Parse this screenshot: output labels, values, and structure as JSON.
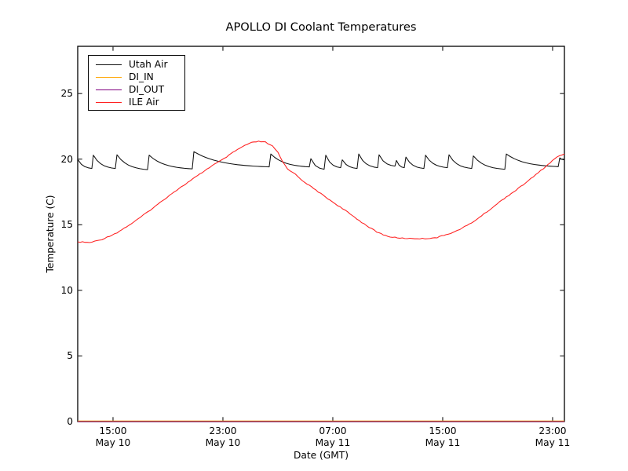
{
  "figure": {
    "background": "#ffffff"
  },
  "chart_data": {
    "type": "line",
    "title": "APOLLO DI Coolant Temperatures",
    "xlabel": "Date (GMT)",
    "ylabel": "Temperature (C)",
    "x_unit_note": "hours since May 10 00:00 GMT, ticks every 8 hours",
    "xlim": [
      12.43,
      47.86
    ],
    "ylim": [
      0,
      28.6
    ],
    "grid": false,
    "legend_position": "upper left",
    "x_ticks": [
      {
        "value": 15,
        "time": "15:00",
        "date": "May 10"
      },
      {
        "value": 23,
        "time": "23:00",
        "date": "May 10"
      },
      {
        "value": 31,
        "time": "07:00",
        "date": "May 11"
      },
      {
        "value": 39,
        "time": "15:00",
        "date": "May 11"
      },
      {
        "value": 47,
        "time": "23:00",
        "date": "May 11"
      }
    ],
    "y_ticks": [
      0,
      5,
      10,
      15,
      20,
      25
    ],
    "series": [
      {
        "name": "Utah Air",
        "color": "#111111",
        "style": "sawtooth",
        "points": [
          [
            12.43,
            19.98
          ],
          [
            13.46,
            19.29
          ],
          [
            13.57,
            20.3
          ],
          [
            15.17,
            19.29
          ],
          [
            15.29,
            20.33
          ],
          [
            17.51,
            19.2
          ],
          [
            17.63,
            20.3
          ],
          [
            20.77,
            19.26
          ],
          [
            20.89,
            20.57
          ],
          [
            26.37,
            19.41
          ],
          [
            26.49,
            20.39
          ],
          [
            29.29,
            19.41
          ],
          [
            29.4,
            20.04
          ],
          [
            30.37,
            19.23
          ],
          [
            30.49,
            20.3
          ],
          [
            31.57,
            19.35
          ],
          [
            31.69,
            19.95
          ],
          [
            32.77,
            19.29
          ],
          [
            32.89,
            20.39
          ],
          [
            34.26,
            19.35
          ],
          [
            34.37,
            20.33
          ],
          [
            35.52,
            19.47
          ],
          [
            35.63,
            19.9
          ],
          [
            36.2,
            19.35
          ],
          [
            36.32,
            20.16
          ],
          [
            37.63,
            19.29
          ],
          [
            37.75,
            20.3
          ],
          [
            39.34,
            19.35
          ],
          [
            39.46,
            20.33
          ],
          [
            41.11,
            19.29
          ],
          [
            41.23,
            20.25
          ],
          [
            43.52,
            19.23
          ],
          [
            43.63,
            20.39
          ],
          [
            47.41,
            19.43
          ],
          [
            47.52,
            20.1
          ],
          [
            47.86,
            19.95
          ]
        ]
      },
      {
        "name": "DI_IN",
        "color": "#ffa500",
        "style": "flat",
        "constant": 0
      },
      {
        "name": "DI_OUT",
        "color": "#800080",
        "style": "flat",
        "constant": 0
      },
      {
        "name": "ILE Air",
        "color": "#ff1f1f",
        "style": "smooth",
        "points": [
          [
            12.43,
            13.7
          ],
          [
            13.3,
            13.64
          ],
          [
            14.2,
            13.88
          ],
          [
            15.3,
            14.4
          ],
          [
            16.5,
            15.19
          ],
          [
            17.9,
            16.27
          ],
          [
            19.3,
            17.4
          ],
          [
            20.8,
            18.48
          ],
          [
            22.2,
            19.5
          ],
          [
            23.1,
            20.04
          ],
          [
            23.9,
            20.63
          ],
          [
            24.6,
            21.05
          ],
          [
            25.1,
            21.26
          ],
          [
            25.6,
            21.35
          ],
          [
            26.1,
            21.29
          ],
          [
            26.6,
            20.99
          ],
          [
            27.0,
            20.5
          ],
          [
            27.35,
            19.8
          ],
          [
            27.7,
            19.25
          ],
          [
            28.1,
            19.0
          ],
          [
            28.8,
            18.36
          ],
          [
            29.6,
            17.76
          ],
          [
            30.8,
            16.87
          ],
          [
            31.9,
            16.09
          ],
          [
            33.1,
            15.19
          ],
          [
            34.2,
            14.44
          ],
          [
            35.0,
            14.11
          ],
          [
            35.7,
            14.0
          ],
          [
            36.6,
            13.95
          ],
          [
            37.7,
            13.94
          ],
          [
            38.6,
            14.03
          ],
          [
            39.9,
            14.47
          ],
          [
            41.1,
            15.13
          ],
          [
            42.2,
            15.97
          ],
          [
            43.3,
            16.87
          ],
          [
            44.5,
            17.76
          ],
          [
            45.6,
            18.66
          ],
          [
            46.5,
            19.44
          ],
          [
            47.3,
            20.16
          ],
          [
            47.86,
            20.39
          ]
        ]
      }
    ]
  }
}
